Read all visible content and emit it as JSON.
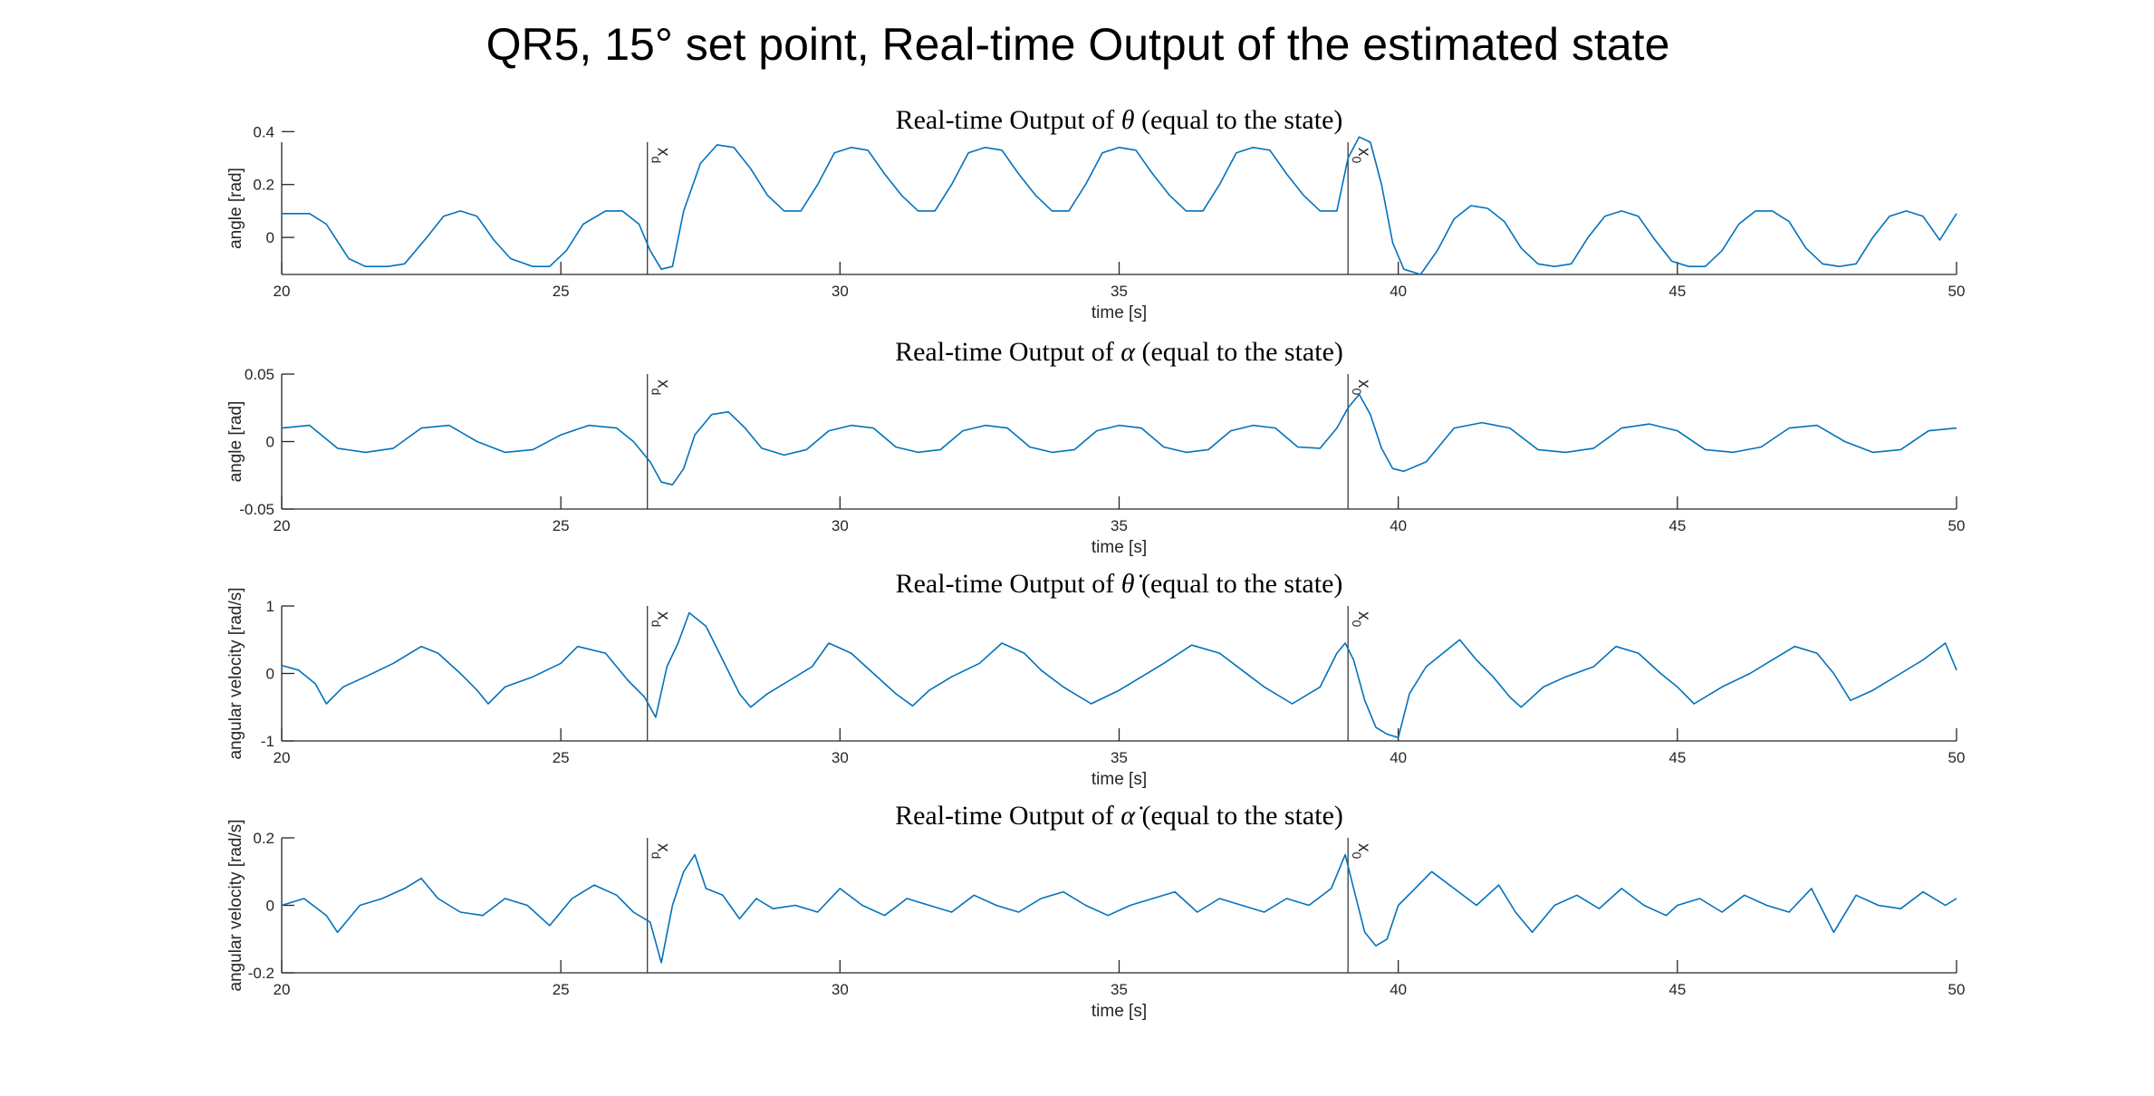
{
  "figure": {
    "suptitle": "QR5, 15° set point, Real-time Output of the estimated state"
  },
  "colors": {
    "series": "#0072BD",
    "axes": "#262626",
    "background": "#ffffff"
  },
  "chart_data": [
    {
      "type": "line",
      "title_prefix": "Real-time Output of ",
      "title_symbol": "θ",
      "title_suffix": " (equal to the state)",
      "xlabel": "time [s]",
      "ylabel": "angle [rad]",
      "xlim": [
        20,
        50
      ],
      "ylim": [
        -0.14,
        0.36
      ],
      "xticks": [
        20,
        25,
        30,
        35,
        40,
        45,
        50
      ],
      "yticks": [
        0,
        0.2,
        0.4
      ],
      "ytick_labels": [
        "0",
        "0.2",
        "0.4"
      ],
      "vlines": [
        {
          "x": 26.55,
          "label": "x",
          "sub": "d"
        },
        {
          "x": 39.1,
          "label": "x",
          "sub": "0"
        }
      ],
      "series": [
        {
          "x": [
            20,
            20.5,
            20.8,
            21.2,
            21.5,
            21.9,
            22.2,
            22.6,
            22.9,
            23.2,
            23.5,
            23.8,
            24.1,
            24.5,
            24.8,
            25.1,
            25.4,
            25.8,
            26.1,
            26.4,
            26.6,
            26.8,
            27.0,
            27.2,
            27.5,
            27.8,
            28.1,
            28.4,
            28.7,
            29.0,
            29.3,
            29.6,
            29.9,
            30.2,
            30.5,
            30.8,
            31.1,
            31.4,
            31.7,
            32.0,
            32.3,
            32.6,
            32.9,
            33.2,
            33.5,
            33.8,
            34.1,
            34.4,
            34.7,
            35.0,
            35.3,
            35.6,
            35.9,
            36.2,
            36.5,
            36.8,
            37.1,
            37.4,
            37.7,
            38.0,
            38.3,
            38.6,
            38.9,
            39.1,
            39.3,
            39.5,
            39.7,
            39.9,
            40.1,
            40.4,
            40.7,
            41.0,
            41.3,
            41.6,
            41.9,
            42.2,
            42.5,
            42.8,
            43.1,
            43.4,
            43.7,
            44.0,
            44.3,
            44.6,
            44.9,
            45.2,
            45.5,
            45.8,
            46.1,
            46.4,
            46.7,
            47.0,
            47.3,
            47.6,
            47.9,
            48.2,
            48.5,
            48.8,
            49.1,
            49.4,
            49.7,
            50
          ],
          "y": [
            0.09,
            0.09,
            0.05,
            -0.08,
            -0.11,
            -0.11,
            -0.1,
            0.0,
            0.08,
            0.1,
            0.08,
            -0.01,
            -0.08,
            -0.11,
            -0.11,
            -0.05,
            0.05,
            0.1,
            0.1,
            0.05,
            -0.05,
            -0.12,
            -0.11,
            0.1,
            0.28,
            0.35,
            0.34,
            0.26,
            0.16,
            0.1,
            0.1,
            0.2,
            0.32,
            0.34,
            0.33,
            0.24,
            0.16,
            0.1,
            0.1,
            0.2,
            0.32,
            0.34,
            0.33,
            0.24,
            0.16,
            0.1,
            0.1,
            0.2,
            0.32,
            0.34,
            0.33,
            0.24,
            0.16,
            0.1,
            0.1,
            0.2,
            0.32,
            0.34,
            0.33,
            0.24,
            0.16,
            0.1,
            0.1,
            0.3,
            0.38,
            0.36,
            0.2,
            -0.02,
            -0.12,
            -0.14,
            -0.05,
            0.07,
            0.12,
            0.11,
            0.06,
            -0.04,
            -0.1,
            -0.11,
            -0.1,
            0.0,
            0.08,
            0.1,
            0.08,
            -0.01,
            -0.09,
            -0.11,
            -0.11,
            -0.05,
            0.05,
            0.1,
            0.1,
            0.06,
            -0.04,
            -0.1,
            -0.11,
            -0.1,
            0.0,
            0.08,
            0.1,
            0.08,
            -0.01,
            0.09
          ]
        }
      ]
    },
    {
      "type": "line",
      "title_prefix": "Real-time Output of ",
      "title_symbol": "α",
      "title_suffix": " (equal to the state)",
      "xlabel": "time [s]",
      "ylabel": "angle [rad]",
      "xlim": [
        20,
        50
      ],
      "ylim": [
        -0.05,
        0.05
      ],
      "xticks": [
        20,
        25,
        30,
        35,
        40,
        45,
        50
      ],
      "yticks": [
        -0.05,
        0,
        0.05
      ],
      "ytick_labels": [
        "-0.05",
        "0",
        "0.05"
      ],
      "vlines": [
        {
          "x": 26.55,
          "label": "x",
          "sub": "d"
        },
        {
          "x": 39.1,
          "label": "x",
          "sub": "0"
        }
      ],
      "series": [
        {
          "x": [
            20,
            20.5,
            21.0,
            21.5,
            22.0,
            22.5,
            23.0,
            23.5,
            24.0,
            24.5,
            25.0,
            25.5,
            26.0,
            26.3,
            26.6,
            26.8,
            27.0,
            27.2,
            27.4,
            27.7,
            28.0,
            28.3,
            28.6,
            29.0,
            29.4,
            29.8,
            30.2,
            30.6,
            31.0,
            31.4,
            31.8,
            32.2,
            32.6,
            33.0,
            33.4,
            33.8,
            34.2,
            34.6,
            35.0,
            35.4,
            35.8,
            36.2,
            36.6,
            37.0,
            37.4,
            37.8,
            38.2,
            38.6,
            38.9,
            39.1,
            39.3,
            39.5,
            39.7,
            39.9,
            40.1,
            40.5,
            41.0,
            41.5,
            42.0,
            42.5,
            43.0,
            43.5,
            44.0,
            44.5,
            45.0,
            45.5,
            46.0,
            46.5,
            47.0,
            47.5,
            48.0,
            48.5,
            49.0,
            49.5,
            50
          ],
          "y": [
            0.01,
            0.012,
            -0.005,
            -0.008,
            -0.005,
            0.01,
            0.012,
            0.0,
            -0.008,
            -0.006,
            0.005,
            0.012,
            0.01,
            0.0,
            -0.015,
            -0.03,
            -0.032,
            -0.02,
            0.005,
            0.02,
            0.022,
            0.01,
            -0.005,
            -0.01,
            -0.006,
            0.008,
            0.012,
            0.01,
            -0.004,
            -0.008,
            -0.006,
            0.008,
            0.012,
            0.01,
            -0.004,
            -0.008,
            -0.006,
            0.008,
            0.012,
            0.01,
            -0.004,
            -0.008,
            -0.006,
            0.008,
            0.012,
            0.01,
            -0.004,
            -0.005,
            0.01,
            0.025,
            0.035,
            0.02,
            -0.005,
            -0.02,
            -0.022,
            -0.015,
            0.01,
            0.014,
            0.01,
            -0.006,
            -0.008,
            -0.005,
            0.01,
            0.013,
            0.008,
            -0.006,
            -0.008,
            -0.004,
            0.01,
            0.012,
            0.0,
            -0.008,
            -0.006,
            0.008,
            0.01
          ]
        }
      ]
    },
    {
      "type": "line",
      "title_prefix": "Real-time Output of ",
      "title_symbol": "θ̇",
      "title_suffix": " (equal to the state)",
      "xlabel": "time [s]",
      "ylabel": "angular velocity [rad/s]",
      "xlim": [
        20,
        50
      ],
      "ylim": [
        -1,
        1
      ],
      "xticks": [
        20,
        25,
        30,
        35,
        40,
        45,
        50
      ],
      "yticks": [
        -1,
        0,
        1
      ],
      "ytick_labels": [
        "-1",
        "0",
        "1"
      ],
      "vlines": [
        {
          "x": 26.55,
          "label": "x",
          "sub": "d"
        },
        {
          "x": 39.1,
          "label": "x",
          "sub": "0"
        }
      ],
      "series": [
        {
          "x": [
            20,
            20.3,
            20.6,
            20.8,
            21.1,
            21.5,
            22.0,
            22.5,
            22.8,
            23.2,
            23.5,
            23.7,
            24.0,
            24.5,
            25.0,
            25.3,
            25.8,
            26.2,
            26.5,
            26.7,
            26.9,
            27.1,
            27.3,
            27.6,
            27.9,
            28.2,
            28.4,
            28.7,
            29.1,
            29.5,
            29.8,
            30.2,
            30.6,
            31.0,
            31.3,
            31.6,
            32.0,
            32.5,
            32.9,
            33.3,
            33.6,
            34.0,
            34.5,
            35.0,
            35.4,
            35.8,
            36.3,
            36.8,
            37.2,
            37.6,
            38.1,
            38.6,
            38.9,
            39.05,
            39.2,
            39.4,
            39.6,
            39.8,
            40.0,
            40.2,
            40.5,
            40.8,
            41.1,
            41.4,
            41.7,
            42.0,
            42.2,
            42.6,
            43.0,
            43.5,
            43.9,
            44.3,
            44.7,
            45.0,
            45.3,
            45.8,
            46.3,
            46.7,
            47.1,
            47.5,
            47.8,
            48.1,
            48.5,
            49.0,
            49.4,
            49.8,
            50
          ],
          "y": [
            0.12,
            0.05,
            -0.15,
            -0.45,
            -0.2,
            -0.05,
            0.15,
            0.4,
            0.3,
            0.0,
            -0.25,
            -0.45,
            -0.2,
            -0.05,
            0.15,
            0.4,
            0.3,
            -0.1,
            -0.35,
            -0.65,
            0.1,
            0.45,
            0.9,
            0.7,
            0.2,
            -0.3,
            -0.5,
            -0.3,
            -0.1,
            0.1,
            0.45,
            0.3,
            0.0,
            -0.3,
            -0.48,
            -0.25,
            -0.05,
            0.15,
            0.45,
            0.3,
            0.05,
            -0.2,
            -0.45,
            -0.25,
            -0.05,
            0.15,
            0.42,
            0.3,
            0.05,
            -0.2,
            -0.45,
            -0.2,
            0.3,
            0.45,
            0.2,
            -0.4,
            -0.8,
            -0.9,
            -0.95,
            -0.3,
            0.1,
            0.3,
            0.5,
            0.2,
            -0.05,
            -0.35,
            -0.5,
            -0.2,
            -0.05,
            0.1,
            0.4,
            0.3,
            0.0,
            -0.2,
            -0.45,
            -0.2,
            0.0,
            0.2,
            0.4,
            0.3,
            0.0,
            -0.4,
            -0.25,
            0.0,
            0.2,
            0.45,
            0.05
          ]
        }
      ]
    },
    {
      "type": "line",
      "title_prefix": "Real-time Output of ",
      "title_symbol": "α̇",
      "title_suffix": " (equal to the state)",
      "xlabel": "time [s]",
      "ylabel": "angular velocity [rad/s]",
      "xlim": [
        20,
        50
      ],
      "ylim": [
        -0.2,
        0.2
      ],
      "xticks": [
        20,
        25,
        30,
        35,
        40,
        45,
        50
      ],
      "yticks": [
        -0.2,
        0,
        0.2
      ],
      "ytick_labels": [
        "-0.2",
        "0",
        "0.2"
      ],
      "vlines": [
        {
          "x": 26.55,
          "label": "x",
          "sub": "d"
        },
        {
          "x": 39.1,
          "label": "x",
          "sub": "0"
        }
      ],
      "series": [
        {
          "x": [
            20,
            20.4,
            20.8,
            21.0,
            21.4,
            21.8,
            22.2,
            22.5,
            22.8,
            23.2,
            23.6,
            24.0,
            24.4,
            24.8,
            25.2,
            25.6,
            26.0,
            26.3,
            26.6,
            26.8,
            27.0,
            27.2,
            27.4,
            27.6,
            27.9,
            28.2,
            28.5,
            28.8,
            29.2,
            29.6,
            30.0,
            30.4,
            30.8,
            31.2,
            31.6,
            32.0,
            32.4,
            32.8,
            33.2,
            33.6,
            34.0,
            34.4,
            34.8,
            35.2,
            35.6,
            36.0,
            36.4,
            36.8,
            37.2,
            37.6,
            38.0,
            38.4,
            38.8,
            39.05,
            39.2,
            39.4,
            39.6,
            39.8,
            40.0,
            40.3,
            40.6,
            41.0,
            41.4,
            41.8,
            42.1,
            42.4,
            42.8,
            43.2,
            43.6,
            44.0,
            44.4,
            44.8,
            45.0,
            45.4,
            45.8,
            46.2,
            46.6,
            47.0,
            47.4,
            47.8,
            48.2,
            48.6,
            49.0,
            49.4,
            49.8,
            50
          ],
          "y": [
            0.0,
            0.02,
            -0.03,
            -0.08,
            0.0,
            0.02,
            0.05,
            0.08,
            0.02,
            -0.02,
            -0.03,
            0.02,
            0.0,
            -0.06,
            0.02,
            0.06,
            0.03,
            -0.02,
            -0.05,
            -0.17,
            0.0,
            0.1,
            0.15,
            0.05,
            0.03,
            -0.04,
            0.02,
            -0.01,
            0.0,
            -0.02,
            0.05,
            0.0,
            -0.03,
            0.02,
            0.0,
            -0.02,
            0.03,
            0.0,
            -0.02,
            0.02,
            0.04,
            0.0,
            -0.03,
            0.0,
            0.02,
            0.04,
            -0.02,
            0.02,
            0.0,
            -0.02,
            0.02,
            0.0,
            0.05,
            0.15,
            0.05,
            -0.08,
            -0.12,
            -0.1,
            0.0,
            0.05,
            0.1,
            0.05,
            0.0,
            0.06,
            -0.02,
            -0.08,
            0.0,
            0.03,
            -0.01,
            0.05,
            0.0,
            -0.03,
            0.0,
            0.02,
            -0.02,
            0.03,
            0.0,
            -0.02,
            0.05,
            -0.08,
            0.03,
            0.0,
            -0.01,
            0.04,
            0.0,
            0.02
          ]
        }
      ]
    }
  ]
}
